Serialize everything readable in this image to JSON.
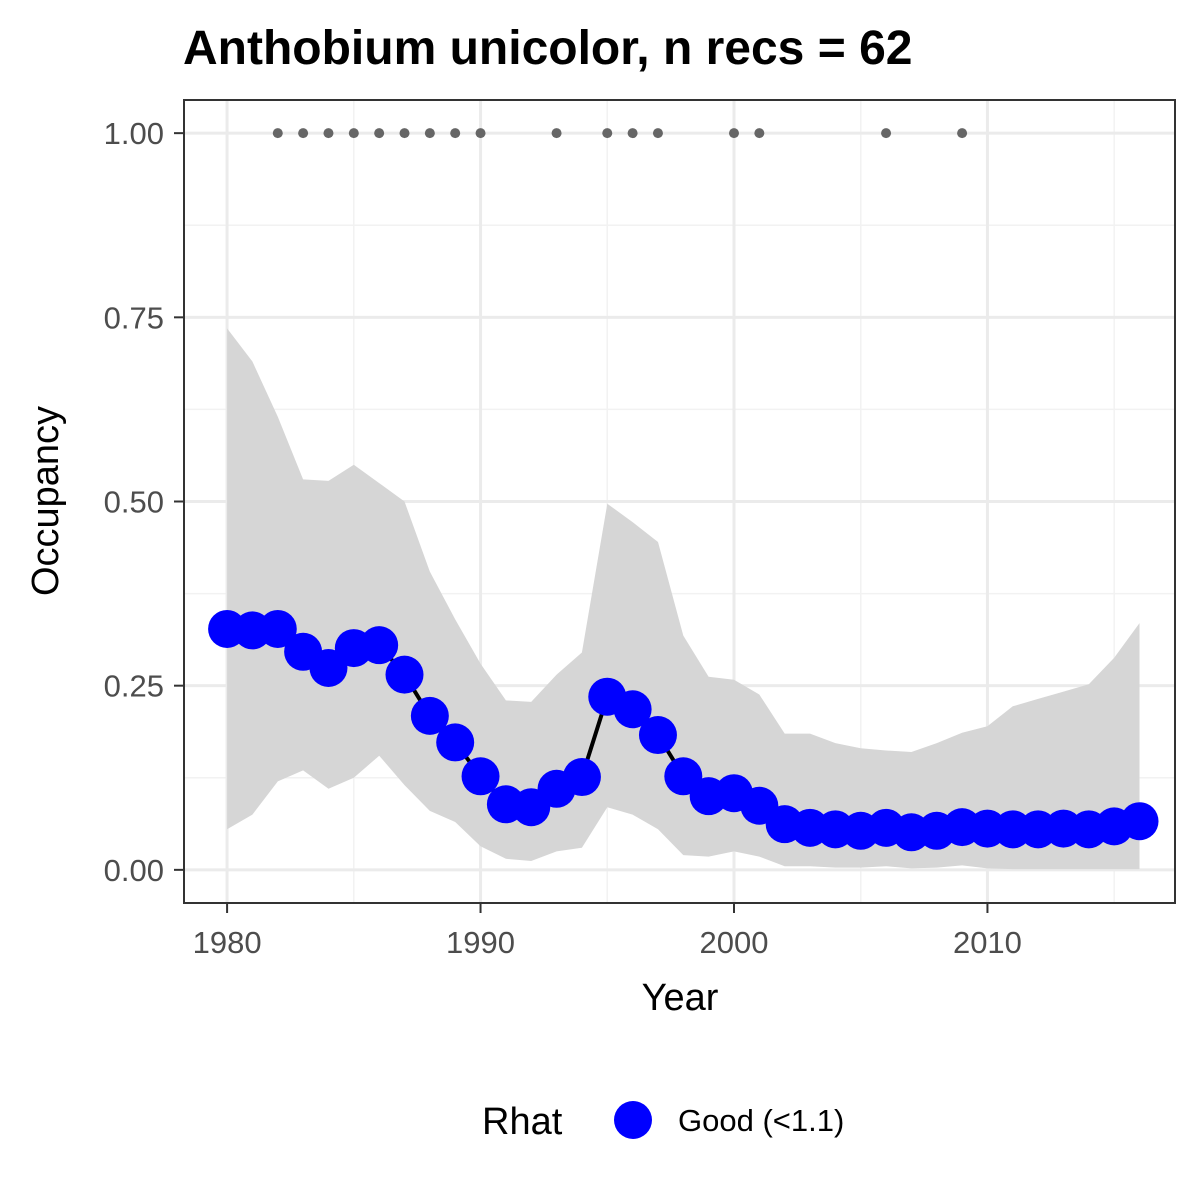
{
  "chart_data": {
    "type": "line",
    "title": "Anthobium unicolor, n recs = 62",
    "xlabel": "Year",
    "ylabel": "Occupancy",
    "xlim": [
      1978.3,
      2017.4
    ],
    "ylim": [
      -0.045,
      1.045
    ],
    "x_ticks": [
      1980,
      1990,
      2000,
      2010
    ],
    "x_tick_labels": [
      "1980",
      "1990",
      "2000",
      "2010"
    ],
    "y_ticks": [
      0,
      0.25,
      0.5,
      0.75,
      1.0
    ],
    "y_tick_labels": [
      "0.00",
      "0.25",
      "0.50",
      "0.75",
      "1.00"
    ],
    "grid": true,
    "legend": {
      "position": "bottom",
      "title": "Rhat",
      "items": [
        {
          "label": "Good (<1.1)",
          "color": "#0000ff"
        }
      ]
    },
    "colors": {
      "points": "#0000ff",
      "line": "#000000",
      "ribbon": "#d6d6d6",
      "records": "#666666"
    },
    "series": [
      {
        "type": "line_with_points",
        "x": [
          1980,
          1981,
          1982,
          1983,
          1984,
          1985,
          1986,
          1987,
          1988,
          1989,
          1990,
          1991,
          1992,
          1993,
          1994,
          1995,
          1996,
          1997,
          1998,
          1999,
          2000,
          2001,
          2002,
          2003,
          2004,
          2005,
          2006,
          2007,
          2008,
          2009,
          2010,
          2011,
          2012,
          2013,
          2014,
          2015,
          2016
        ],
        "y": [
          0.327,
          0.325,
          0.327,
          0.296,
          0.274,
          0.301,
          0.305,
          0.265,
          0.209,
          0.173,
          0.127,
          0.089,
          0.085,
          0.11,
          0.126,
          0.235,
          0.218,
          0.183,
          0.127,
          0.1,
          0.104,
          0.087,
          0.062,
          0.057,
          0.055,
          0.053,
          0.057,
          0.051,
          0.053,
          0.058,
          0.056,
          0.055,
          0.055,
          0.056,
          0.055,
          0.059,
          0.066
        ]
      },
      {
        "type": "ribbon",
        "x": [
          1980,
          1981,
          1982,
          1983,
          1984,
          1985,
          1986,
          1987,
          1988,
          1989,
          1990,
          1991,
          1992,
          1993,
          1994,
          1995,
          1996,
          1997,
          1998,
          1999,
          2000,
          2001,
          2002,
          2003,
          2004,
          2005,
          2006,
          2007,
          2008,
          2009,
          2010,
          2011,
          2012,
          2013,
          2014,
          2015,
          2016
        ],
        "lower": [
          0.055,
          0.075,
          0.12,
          0.135,
          0.11,
          0.125,
          0.155,
          0.115,
          0.08,
          0.065,
          0.032,
          0.015,
          0.012,
          0.025,
          0.03,
          0.085,
          0.075,
          0.055,
          0.02,
          0.018,
          0.025,
          0.018,
          0.005,
          0.005,
          0.003,
          0.003,
          0.005,
          0.002,
          0.003,
          0.006,
          0.002,
          0.001,
          0.001,
          0.001,
          0.001,
          0.001,
          0.001
        ],
        "upper": [
          0.735,
          0.69,
          0.615,
          0.53,
          0.528,
          0.55,
          0.525,
          0.5,
          0.405,
          0.34,
          0.28,
          0.23,
          0.228,
          0.265,
          0.295,
          0.497,
          0.472,
          0.445,
          0.318,
          0.262,
          0.258,
          0.238,
          0.185,
          0.185,
          0.172,
          0.165,
          0.162,
          0.16,
          0.172,
          0.186,
          0.195,
          0.222,
          0.232,
          0.242,
          0.252,
          0.288,
          0.335
        ]
      },
      {
        "type": "records",
        "x": [
          1982,
          1983,
          1984,
          1985,
          1986,
          1987,
          1988,
          1989,
          1990,
          1993,
          1995,
          1996,
          1997,
          2000,
          2001,
          2006,
          2009
        ],
        "y": [
          1,
          1,
          1,
          1,
          1,
          1,
          1,
          1,
          1,
          1,
          1,
          1,
          1,
          1,
          1,
          1,
          1
        ]
      }
    ]
  }
}
